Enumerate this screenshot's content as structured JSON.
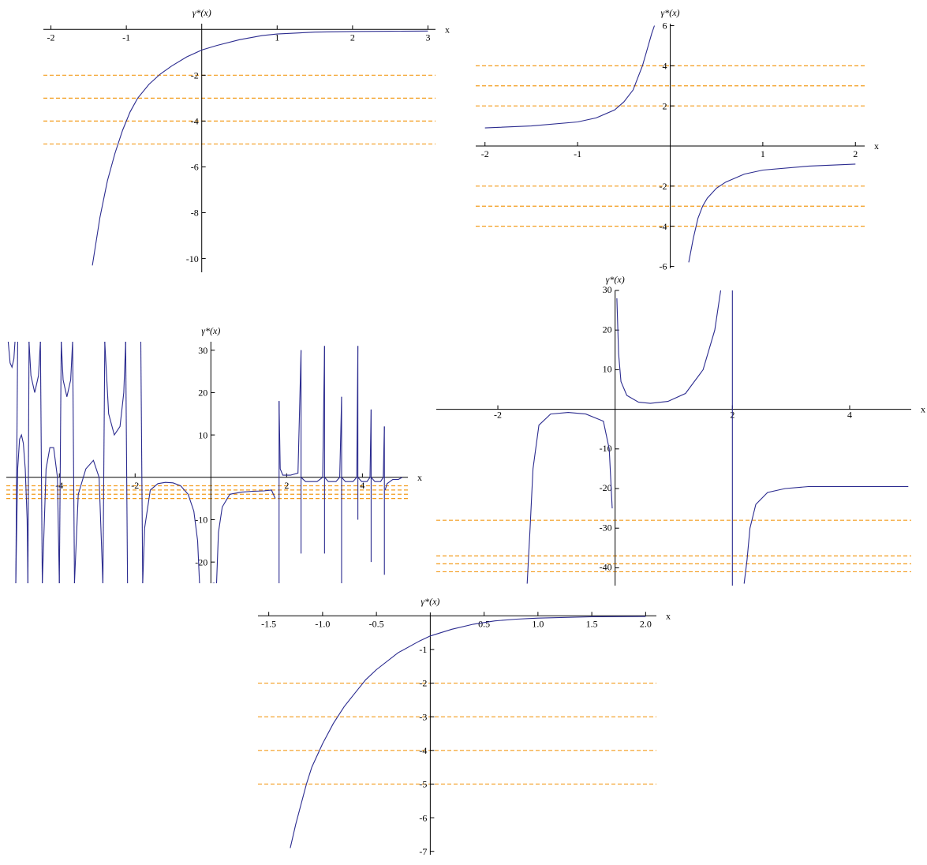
{
  "colors": {
    "curve": "#2b2b8f",
    "reference_lines": "#f39c1c",
    "axes": "#000000"
  },
  "chart_data": [
    {
      "type": "line",
      "xlabel": "x",
      "ylabel": "γ*(x)",
      "xlim": [
        -2.1,
        3.1
      ],
      "ylim": [
        -10.6,
        0.25
      ],
      "x_ticks": [
        -2,
        -1,
        1,
        2,
        3
      ],
      "x_tick_labels": [
        "-2",
        "-1",
        "1",
        "2",
        "3"
      ],
      "y_ticks": [
        -2,
        -4,
        -6,
        -8,
        -10
      ],
      "y_tick_labels": [
        "-2",
        "-4",
        "-6",
        "-8",
        "-10"
      ],
      "reference_lines": [
        -2,
        -3,
        -4,
        -5
      ],
      "series": [
        {
          "x": [
            -1.45,
            -1.35,
            -1.25,
            -1.15,
            -1.05,
            -0.95,
            -0.85,
            -0.7,
            -0.55,
            -0.4,
            -0.2,
            0.0,
            0.2,
            0.5,
            0.8,
            1.0,
            1.5,
            2.0,
            2.5,
            3.0
          ],
          "y": [
            -10.3,
            -8.2,
            -6.6,
            -5.4,
            -4.4,
            -3.6,
            -3.0,
            -2.4,
            -1.95,
            -1.6,
            -1.2,
            -0.9,
            -0.7,
            -0.45,
            -0.27,
            -0.2,
            -0.12,
            -0.09,
            -0.08,
            -0.07
          ]
        }
      ]
    },
    {
      "type": "line",
      "xlabel": "x",
      "ylabel": "γ*(x)",
      "xlim": [
        -2.1,
        2.1
      ],
      "ylim": [
        -6.1,
        6.1
      ],
      "x_ticks": [
        -2,
        -1,
        1,
        2
      ],
      "x_tick_labels": [
        "-2",
        "-1",
        "1",
        "2"
      ],
      "y_ticks": [
        6,
        4,
        2,
        -2,
        -4,
        -6
      ],
      "y_tick_labels": [
        "6",
        "4",
        "2",
        "-2",
        "-4",
        "-6"
      ],
      "reference_lines": [
        4,
        3,
        2,
        -2,
        -3,
        -4
      ],
      "series": [
        {
          "x": [
            -2.0,
            -1.5,
            -1.0,
            -0.8,
            -0.6,
            -0.5,
            -0.4,
            -0.35,
            -0.3,
            -0.25,
            -0.2,
            -0.17
          ],
          "y": [
            0.9,
            1.0,
            1.2,
            1.4,
            1.8,
            2.2,
            2.8,
            3.4,
            4.0,
            4.8,
            5.6,
            6.0
          ]
        },
        {
          "x": [
            0.2,
            0.25,
            0.3,
            0.35,
            0.4,
            0.5,
            0.6,
            0.8,
            1.0,
            1.5,
            2.0
          ],
          "y": [
            -5.8,
            -4.6,
            -3.6,
            -3.0,
            -2.6,
            -2.1,
            -1.8,
            -1.4,
            -1.2,
            -1.0,
            -0.9
          ]
        }
      ]
    },
    {
      "type": "line",
      "xlabel": "x",
      "ylabel": "γ*(x)",
      "xlim": [
        -5.4,
        5.2
      ],
      "ylim": [
        -25,
        32
      ],
      "x_ticks": [
        -4,
        -2,
        2,
        4
      ],
      "x_tick_labels": [
        "-4",
        "-2",
        "2",
        "4"
      ],
      "y_ticks": [
        30,
        20,
        10,
        -10,
        -20
      ],
      "y_tick_labels": [
        "30",
        "20",
        "10",
        "-10",
        "-20"
      ],
      "reference_lines": [
        -2,
        -3,
        -4,
        -5
      ],
      "series": [
        {
          "x": [
            -5.35,
            -5.3,
            -5.25,
            -5.2,
            -5.17
          ],
          "y": [
            32,
            27,
            26,
            28,
            32
          ]
        },
        {
          "x": [
            -5.15,
            -5.1,
            -5.05,
            -5.0,
            -4.95,
            -4.9,
            -4.85,
            -4.83
          ],
          "y": [
            -25,
            2,
            9,
            10,
            8,
            2,
            -10,
            -25
          ]
        },
        {
          "x": [
            -4.8,
            -4.75,
            -4.65,
            -4.55,
            -4.5
          ],
          "y": [
            32,
            24,
            20,
            24,
            32
          ]
        },
        {
          "x": [
            -4.45,
            -4.35,
            -4.25,
            -4.15,
            -4.05,
            -4.0
          ],
          "y": [
            -25,
            2,
            7,
            7,
            0,
            -25
          ]
        },
        {
          "x": [
            -3.95,
            -3.9,
            -3.8,
            -3.7,
            -3.65
          ],
          "y": [
            32,
            23,
            19,
            23,
            32
          ]
        },
        {
          "x": [
            -3.6,
            -3.5,
            -3.3,
            -3.1,
            -2.95,
            -2.85
          ],
          "y": [
            -25,
            -4,
            2,
            4,
            0,
            -25
          ]
        },
        {
          "x": [
            -2.8,
            -2.7,
            -2.55,
            -2.4,
            -2.3,
            -2.25
          ],
          "y": [
            32,
            15,
            10,
            12,
            20,
            32
          ]
        },
        {
          "x": [
            -1.8,
            -1.75,
            -1.6,
            -1.4,
            -1.2,
            -1.0,
            -0.8,
            -0.6,
            -0.45,
            -0.35,
            -0.3
          ],
          "y": [
            -25,
            -12,
            -3,
            -1.5,
            -1.2,
            -1.3,
            -2,
            -4,
            -8,
            -15,
            -25
          ]
        },
        {
          "x": [
            0.15,
            0.2,
            0.3,
            0.5,
            0.8,
            1.1,
            1.4,
            1.6,
            1.7
          ],
          "y": [
            -25,
            -13,
            -7,
            -4,
            -3.5,
            -3.3,
            -3.2,
            -3,
            -5
          ]
        },
        {
          "x": [
            1.8,
            1.83,
            1.9,
            2.1,
            2.3,
            2.38
          ],
          "y": [
            18,
            2,
            0.5,
            0.5,
            1,
            30
          ]
        },
        {
          "x": [
            2.38,
            2.5,
            2.8,
            2.95,
            3.0
          ],
          "y": [
            0,
            -1,
            -1,
            0,
            31
          ]
        },
        {
          "x": [
            3.0,
            3.1,
            3.3,
            3.4,
            3.45
          ],
          "y": [
            0,
            -1,
            -1,
            0,
            19
          ]
        },
        {
          "x": [
            3.45,
            3.55,
            3.75,
            3.85,
            3.88
          ],
          "y": [
            0,
            -1,
            -1,
            0,
            31
          ]
        },
        {
          "x": [
            3.88,
            3.98,
            4.12,
            4.2,
            4.23
          ],
          "y": [
            0,
            -1,
            -1,
            0,
            16
          ]
        },
        {
          "x": [
            4.23,
            4.33,
            4.48,
            4.55,
            4.58
          ],
          "y": [
            0,
            -1,
            -1,
            0,
            12
          ]
        },
        {
          "x": [
            4.6,
            4.65,
            4.8,
            4.95,
            5.05
          ],
          "y": [
            -3,
            -1.5,
            -0.5,
            -0.5,
            0
          ]
        }
      ],
      "spikes": [
        [
          -5.15,
          -25,
          -5.1,
          32
        ],
        [
          -4.83,
          -25,
          -4.8,
          32
        ],
        [
          -4.5,
          32,
          -4.45,
          -25
        ],
        [
          -4.0,
          -25,
          -3.95,
          32
        ],
        [
          -3.65,
          32,
          -3.6,
          -25
        ],
        [
          -2.85,
          -25,
          -2.8,
          32
        ],
        [
          -2.25,
          32,
          -2.2,
          -25
        ],
        [
          -1.85,
          32,
          -1.8,
          -25
        ],
        [
          0.05,
          -25,
          0.1,
          -25
        ],
        [
          1.8,
          -25,
          1.8,
          18
        ],
        [
          2.38,
          -18,
          2.38,
          30
        ],
        [
          3.0,
          -18,
          3.0,
          31
        ],
        [
          3.45,
          -25,
          3.45,
          19
        ],
        [
          3.88,
          -10,
          3.88,
          31
        ],
        [
          4.23,
          -20,
          4.23,
          16
        ],
        [
          4.58,
          -23,
          4.58,
          12
        ]
      ]
    },
    {
      "type": "line",
      "xlabel": "x",
      "ylabel": "γ*(x)",
      "xlim": [
        -3.05,
        5.05
      ],
      "ylim": [
        -44.5,
        30
      ],
      "x_ticks": [
        -2,
        2,
        4
      ],
      "x_tick_labels": [
        "-2",
        "2",
        "4"
      ],
      "y_ticks": [
        30,
        20,
        10,
        -10,
        -20,
        -30,
        -40
      ],
      "y_tick_labels": [
        "30",
        "20",
        "10",
        "-10",
        "-20",
        "-30",
        "-40"
      ],
      "reference_lines": [
        -28,
        -37,
        -39,
        -41
      ],
      "series": [
        {
          "x": [
            -1.5,
            -1.45,
            -1.4,
            -1.3,
            -1.1,
            -0.8,
            -0.5,
            -0.2,
            -0.1,
            -0.05
          ],
          "y": [
            -44,
            -30,
            -15,
            -4,
            -1.2,
            -0.8,
            -1.2,
            -3,
            -10,
            -25
          ]
        },
        {
          "x": [
            0.03,
            0.06,
            0.1,
            0.2,
            0.4,
            0.6,
            0.9,
            1.2,
            1.5,
            1.7,
            1.8
          ],
          "y": [
            28,
            14,
            7,
            3.5,
            1.8,
            1.5,
            2,
            4,
            10,
            20,
            30
          ]
        },
        {
          "x": [
            2.2,
            2.25,
            2.3,
            2.4,
            2.6,
            2.9,
            3.3,
            4.0,
            5.0
          ],
          "y": [
            -44,
            -38,
            -30,
            -24,
            -21,
            -20,
            -19.5,
            -19.5,
            -19.5
          ]
        }
      ],
      "spikes": [
        [
          2.0,
          -44.5,
          2.0,
          30
        ]
      ]
    },
    {
      "type": "line",
      "xlabel": "x",
      "ylabel": "γ*(x)",
      "xlim": [
        -1.6,
        2.1
      ],
      "ylim": [
        -7.1,
        0.1
      ],
      "x_ticks": [
        -1.5,
        -1.0,
        -0.5,
        0.5,
        1.0,
        1.5,
        2.0
      ],
      "x_tick_labels": [
        "-1.5",
        "-1.0",
        "-0.5",
        "0.5",
        "1.0",
        "1.5",
        "2.0"
      ],
      "y_ticks": [
        -1,
        -2,
        -3,
        -4,
        -5,
        -6,
        -7
      ],
      "y_tick_labels": [
        "-1",
        "-2",
        "-3",
        "-4",
        "-5",
        "-6",
        "-7"
      ],
      "reference_lines": [
        -2,
        -3,
        -4,
        -5
      ],
      "series": [
        {
          "x": [
            -1.3,
            -1.25,
            -1.2,
            -1.15,
            -1.1,
            -1.0,
            -0.9,
            -0.8,
            -0.7,
            -0.6,
            -0.5,
            -0.3,
            -0.1,
            0.0,
            0.2,
            0.4,
            0.6,
            0.8,
            1.0,
            1.5,
            2.0
          ],
          "y": [
            -6.9,
            -6.2,
            -5.6,
            -5.0,
            -4.5,
            -3.8,
            -3.2,
            -2.7,
            -2.3,
            -1.9,
            -1.6,
            -1.1,
            -0.75,
            -0.6,
            -0.4,
            -0.25,
            -0.15,
            -0.1,
            -0.07,
            -0.03,
            -0.02
          ]
        }
      ]
    }
  ]
}
